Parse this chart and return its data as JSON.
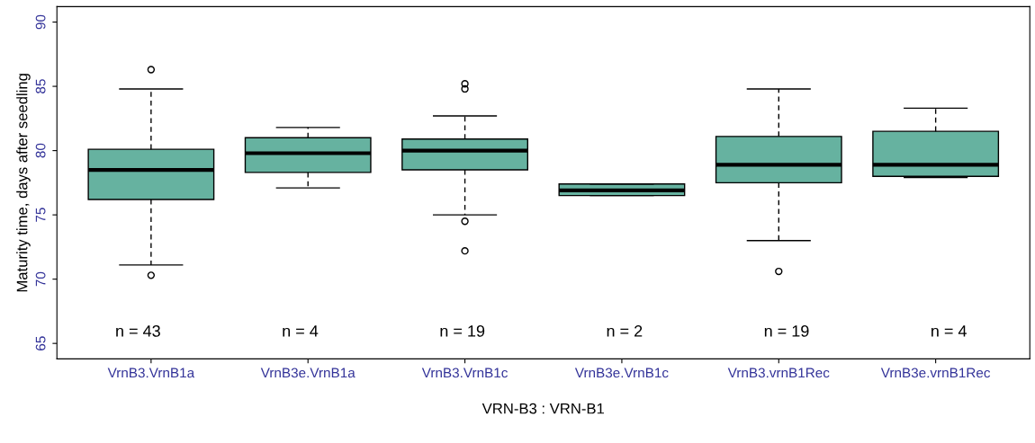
{
  "chart_data": {
    "type": "box",
    "xlabel": "VRN-B3 : VRN-B1",
    "ylabel": "Maturity time, days after seedling",
    "categories": [
      "VrnB3.VrnB1a",
      "VrnB3e.VrnB1a",
      "VrnB3.VrnB1c",
      "VrnB3e.VrnB1c",
      "VrnB3.vrnB1Rec",
      "VrnB3e.vrnB1Rec"
    ],
    "series": [
      {
        "color": "#66b2a0",
        "boxes": [
          {
            "low": 71.1,
            "q1": 76.2,
            "median": 78.5,
            "q3": 80.1,
            "high": 84.8,
            "outliers": [
              86.3,
              70.3
            ]
          },
          {
            "low": 77.1,
            "q1": 78.3,
            "median": 79.8,
            "q3": 81.0,
            "high": 81.8
          },
          {
            "low": 75.0,
            "q1": 78.5,
            "median": 80.0,
            "q3": 80.9,
            "high": 82.7,
            "outliers": [
              85.2,
              84.8,
              74.5,
              72.2
            ]
          },
          {
            "low": 76.5,
            "q1": 76.5,
            "median": 76.9,
            "q3": 77.4,
            "high": 77.4
          },
          {
            "low": 73.0,
            "q1": 77.5,
            "median": 78.9,
            "q3": 81.1,
            "high": 84.8,
            "outliers": [
              70.6
            ]
          },
          {
            "low": 77.9,
            "q1": 78.0,
            "median": 78.9,
            "q3": 81.5,
            "high": 83.3
          }
        ]
      }
    ],
    "ylim": [
      63.8,
      91.2
    ],
    "yticks": [
      65,
      70,
      75,
      80,
      85,
      90
    ],
    "grid": false,
    "legend": false,
    "annotations": [
      "n = 43",
      "n = 4",
      "n = 19",
      "n = 2",
      "n = 19",
      "n = 4"
    ]
  }
}
